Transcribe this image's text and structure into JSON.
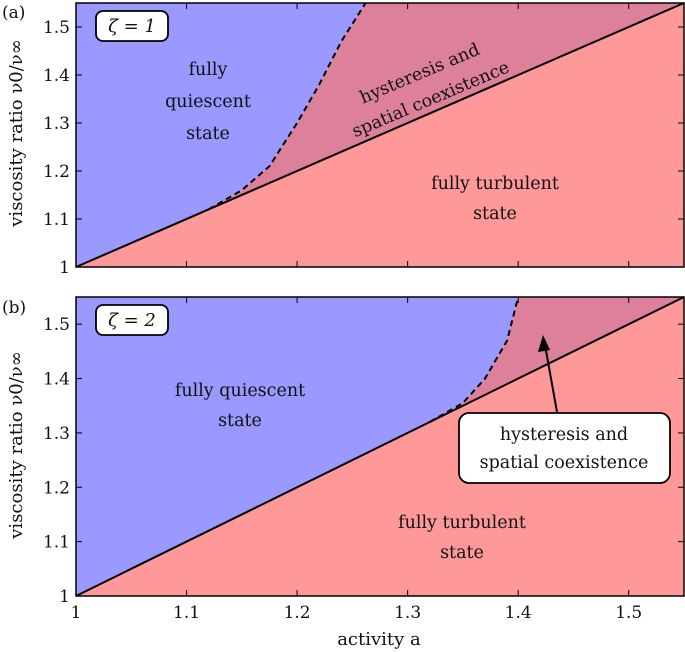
{
  "chart_data": [
    {
      "type": "area",
      "panel_label": "(a)",
      "annotation": "ζ = 1",
      "ylabel": "viscosity ratio ν0/ν∞",
      "xlim": [
        1,
        1.55
      ],
      "ylim": [
        1,
        1.55
      ],
      "xticks": [
        "1",
        "1.1",
        "1.2",
        "1.3",
        "1.4",
        "1.5"
      ],
      "yticks": [
        "1",
        "1.1",
        "1.2",
        "1.3",
        "1.4",
        "1.5"
      ],
      "colors": {
        "quiescent": "#9999ff",
        "turbulent": "#ff9999",
        "coexistence": "#dd8099",
        "line": "#000000"
      },
      "solid_boundary": {
        "x": [
          1.0,
          1.55
        ],
        "y": [
          1.0,
          1.55
        ]
      },
      "dashed_boundary": {
        "x": [
          1.12,
          1.15,
          1.175,
          1.2,
          1.22,
          1.24,
          1.262
        ],
        "y": [
          1.12,
          1.16,
          1.21,
          1.3,
          1.38,
          1.47,
          1.55
        ]
      },
      "regions": {
        "quiescent": [
          "fully",
          "quiescent",
          "state"
        ],
        "coexistence": [
          "hysteresis and",
          "spatial coexistence"
        ],
        "turbulent": [
          "fully turbulent",
          "state"
        ]
      }
    },
    {
      "type": "area",
      "panel_label": "(b)",
      "annotation": "ζ = 2",
      "xlabel": "activity a",
      "ylabel": "viscosity ratio ν0/ν∞",
      "xlim": [
        1,
        1.55
      ],
      "ylim": [
        1,
        1.55
      ],
      "xticks": [
        "1",
        "1.1",
        "1.2",
        "1.3",
        "1.4",
        "1.5"
      ],
      "yticks": [
        "1",
        "1.1",
        "1.2",
        "1.3",
        "1.4",
        "1.5"
      ],
      "colors": {
        "quiescent": "#9999ff",
        "turbulent": "#ff9999",
        "coexistence": "#dd8099",
        "line": "#000000"
      },
      "solid_boundary": {
        "x": [
          1.0,
          1.55
        ],
        "y": [
          1.0,
          1.55
        ]
      },
      "dashed_boundary": {
        "x": [
          1.32,
          1.35,
          1.37,
          1.39,
          1.4
        ],
        "y": [
          1.32,
          1.355,
          1.4,
          1.47,
          1.55
        ]
      },
      "regions": {
        "quiescent": [
          "fully quiescent",
          "state"
        ],
        "coexistence": [
          "hysteresis and",
          "spatial coexistence"
        ],
        "turbulent": [
          "fully turbulent",
          "state"
        ]
      }
    }
  ]
}
